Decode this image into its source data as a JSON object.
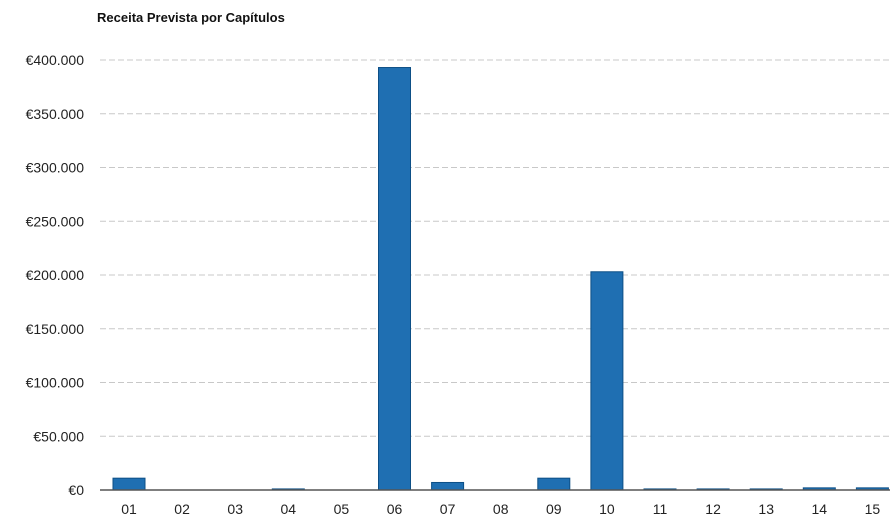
{
  "chart_data": {
    "type": "bar",
    "title": "Receita Prevista por Capítulos",
    "xlabel": "",
    "ylabel": "",
    "categories": [
      "01",
      "02",
      "03",
      "04",
      "05",
      "06",
      "07",
      "08",
      "09",
      "10",
      "11",
      "12",
      "13",
      "14",
      "15"
    ],
    "values": [
      11000,
      0,
      0,
      1000,
      0,
      393000,
      7000,
      0,
      11000,
      203000,
      1000,
      1000,
      1000,
      2000,
      2000
    ],
    "y_ticks": [
      "€0",
      "€50.000",
      "€100.000",
      "€150.000",
      "€200.000",
      "€250.000",
      "€300.000",
      "€350.000",
      "€400.000"
    ],
    "ylim": [
      0,
      400000
    ],
    "grid": true,
    "legend": "none",
    "bar_color": "#1f6fb2",
    "bar_edge_color": "#0d4f86",
    "grid_color": "#c8c8c8",
    "axis_color": "#555555"
  }
}
